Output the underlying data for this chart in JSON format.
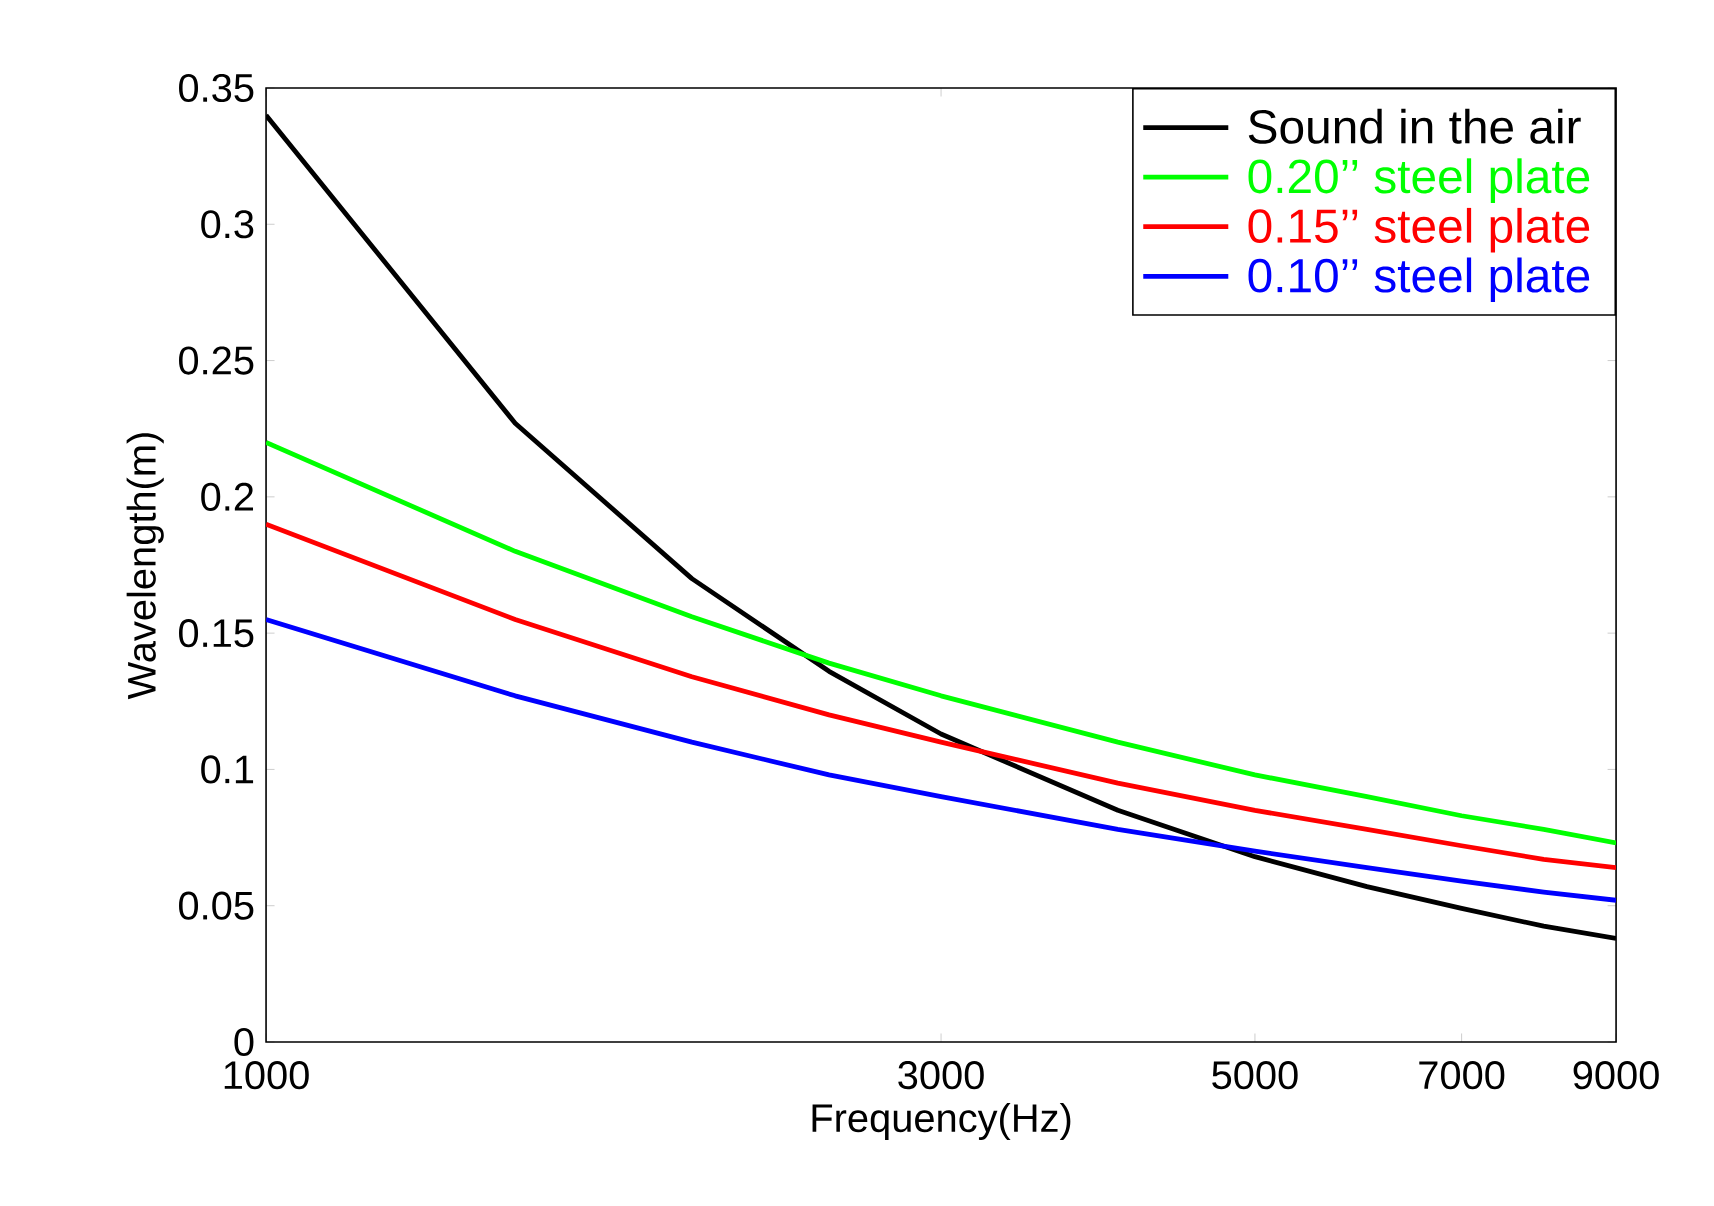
{
  "chart_data": {
    "type": "line",
    "xlabel": "Frequency(Hz)",
    "ylabel": "Wavelength(m)",
    "log": "x",
    "grid": false,
    "legend": "top right",
    "marker": "none",
    "line_style": "solid",
    "x": [
      1000,
      1500,
      2000,
      2500,
      3000,
      4000,
      5000,
      6000,
      7000,
      8000,
      9000
    ],
    "xlim": [
      1000,
      9000
    ],
    "xticks": [
      1000,
      3000,
      5000,
      7000,
      9000
    ],
    "ylim": [
      0,
      0.35
    ],
    "yticks": [
      0,
      0.05,
      0.1,
      0.15,
      0.2,
      0.25,
      0.3,
      0.35
    ],
    "series": [
      {
        "name": "Sound in the air",
        "color": "#000000",
        "values": [
          0.34,
          0.227,
          0.17,
          0.136,
          0.113,
          0.085,
          0.068,
          0.057,
          0.049,
          0.0425,
          0.038
        ]
      },
      {
        "name": "0.20’’ steel plate",
        "color": "#00ff00",
        "values": [
          0.22,
          0.18,
          0.156,
          0.139,
          0.127,
          0.11,
          0.098,
          0.09,
          0.083,
          0.078,
          0.073
        ]
      },
      {
        "name": "0.15’’ steel plate",
        "color": "#ff0000",
        "values": [
          0.19,
          0.155,
          0.134,
          0.12,
          0.11,
          0.095,
          0.085,
          0.078,
          0.072,
          0.067,
          0.064
        ]
      },
      {
        "name": "0.10’’ steel plate",
        "color": "#0000ff",
        "values": [
          0.155,
          0.127,
          0.11,
          0.098,
          0.09,
          0.078,
          0.07,
          0.064,
          0.059,
          0.055,
          0.052
        ]
      }
    ]
  }
}
